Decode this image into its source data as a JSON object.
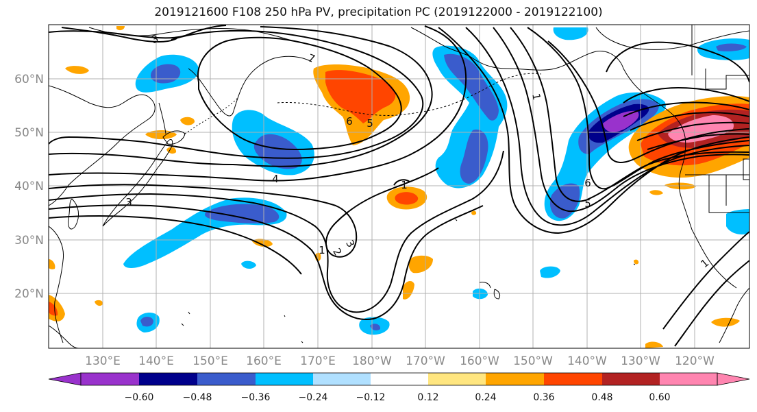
{
  "title": "2019121600 F108 250 hPa PV, precipitation PC (2019122000 - 2019122100)",
  "lat_labels": [
    "60°N",
    "50°N",
    "40°N",
    "30°N",
    "20°N"
  ],
  "lon_labels": [
    "130°E",
    "140°E",
    "150°E",
    "160°E",
    "170°E",
    "180°W",
    "170°W",
    "160°W",
    "150°W",
    "140°W",
    "130°W",
    "120°W"
  ],
  "colorbar": {
    "colors": [
      "#9932CC",
      "#00008B",
      "#3A5CCC",
      "#00BFFF",
      "#B0E0FF",
      "#FFFFFF",
      "#FFE680",
      "#FFA500",
      "#FF4500",
      "#B22222",
      "#FF85B0"
    ],
    "tick_labels": [
      "−0.60",
      "−0.48",
      "−0.36",
      "−0.24",
      "−0.12",
      "0.12",
      "0.24",
      "0.36",
      "0.48",
      "0.60"
    ]
  },
  "contour_labels": [
    "3",
    "7",
    "6",
    "5",
    "4",
    "3",
    "1",
    "2",
    "3",
    "1",
    "6",
    "5",
    "1",
    "1"
  ],
  "palette": {
    "land_outline": "#000000",
    "grid": "#b0b0b0",
    "contour": "#000000"
  }
}
